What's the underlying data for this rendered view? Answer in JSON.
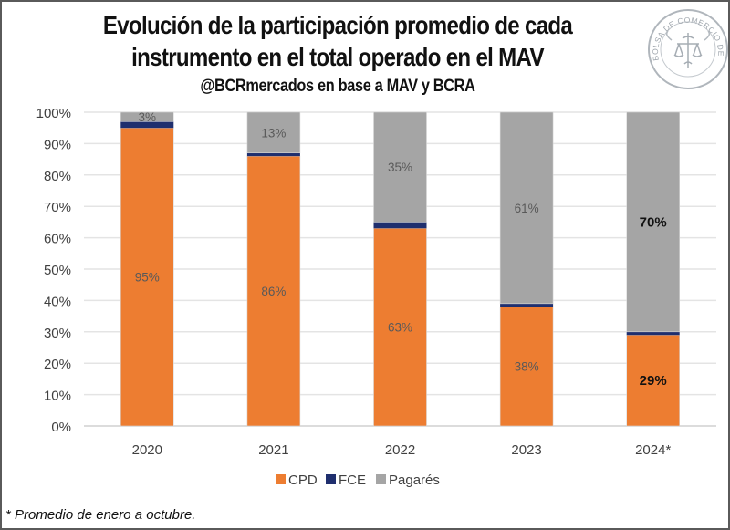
{
  "header": {
    "title_line1": "Evolución de la participación promedio de cada",
    "title_line2": "instrumento en el total operado en el MAV",
    "subtitle": "@BCRmercados en base a MAV y BCRA",
    "logo_text": "BOLSA DE COMERCIO DE ROSARIO"
  },
  "footnote": "* Promedio de enero a octubre.",
  "chart_data": {
    "type": "bar",
    "stacked": true,
    "title": "Evolución de la participación promedio de cada instrumento en el total operado en el MAV",
    "subtitle": "@BCRmercados en base a MAV y BCRA",
    "xlabel": "",
    "ylabel": "",
    "categories": [
      "2020",
      "2021",
      "2022",
      "2023",
      "2024*"
    ],
    "ylim": [
      0,
      100
    ],
    "yticks": [
      0,
      10,
      20,
      30,
      40,
      50,
      60,
      70,
      80,
      90,
      100
    ],
    "ytick_labels": [
      "0%",
      "10%",
      "20%",
      "30%",
      "40%",
      "50%",
      "60%",
      "70%",
      "80%",
      "90%",
      "100%"
    ],
    "grid": true,
    "legend_position": "bottom",
    "series": [
      {
        "name": "CPD",
        "color": "#ED7D31",
        "values": [
          95,
          86,
          63,
          38,
          29
        ],
        "labels": [
          "95%",
          "86%",
          "63%",
          "38%",
          "29%"
        ]
      },
      {
        "name": "FCE",
        "color": "#1F2F6E",
        "values": [
          2,
          1,
          2,
          1,
          1
        ],
        "labels": [
          "",
          "",
          "",
          "",
          ""
        ]
      },
      {
        "name": "Pagarés",
        "color": "#A5A5A5",
        "values": [
          3,
          13,
          35,
          61,
          70
        ],
        "labels": [
          "3%",
          "13%",
          "35%",
          "61%",
          "70%"
        ]
      }
    ],
    "bold_labels_category": "2024*"
  }
}
